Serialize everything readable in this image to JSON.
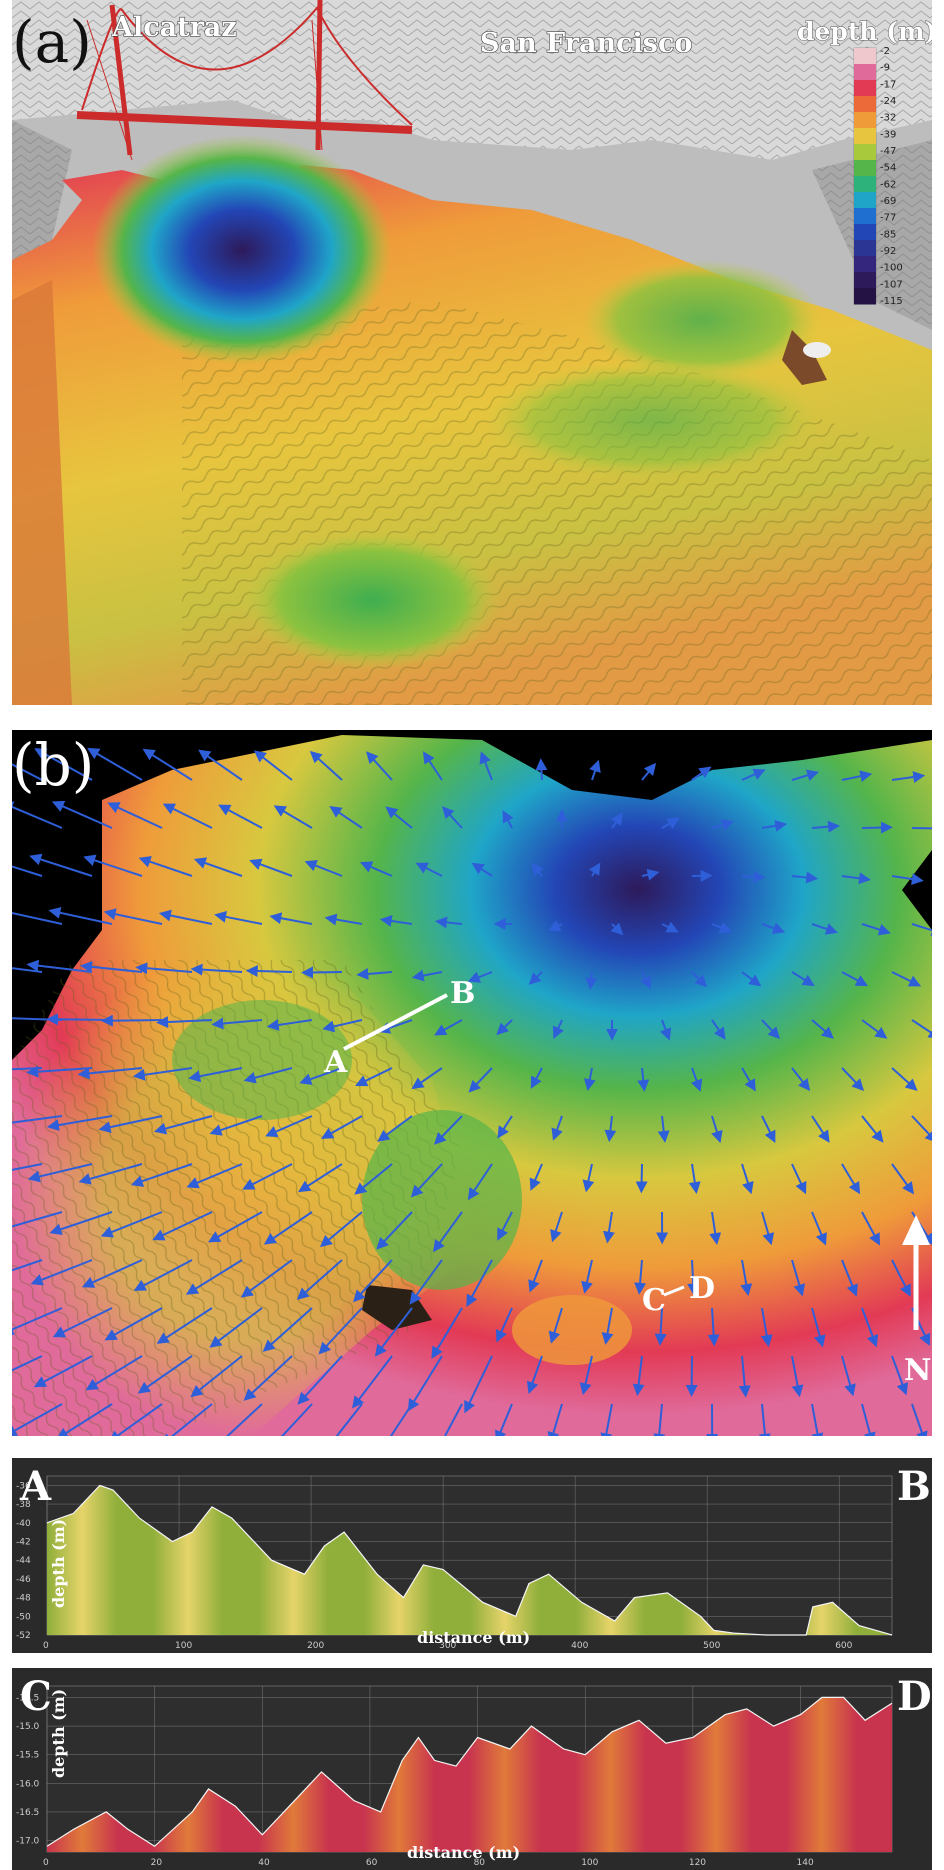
{
  "panel_a": {
    "letter": "(a)",
    "labels": {
      "alcatraz": "Alcatraz",
      "san_francisco": "San Francisco"
    },
    "legend": {
      "title": "depth (m)",
      "ticks": [
        "-2",
        "-9",
        "-17",
        "-24",
        "-32",
        "-39",
        "-47",
        "-54",
        "-62",
        "-69",
        "-77",
        "-85",
        "-92",
        "-100",
        "-107",
        "-115"
      ],
      "colors": [
        "#eec8cc",
        "#e06a9a",
        "#e23a55",
        "#ec6a3a",
        "#ef9b3a",
        "#e8c53e",
        "#a9c93c",
        "#55b54a",
        "#2cb27a",
        "#1fa5c8",
        "#1e6fd0",
        "#2346b6",
        "#2a3594",
        "#34267c",
        "#2d1a5a",
        "#241244"
      ]
    }
  },
  "panel_b": {
    "letter": "(b)",
    "points": {
      "a": "A",
      "b": "B",
      "c": "C",
      "d": "D"
    },
    "north": "N"
  },
  "profile_ab": {
    "start": "A",
    "end": "B",
    "ylabel": "depth (m)",
    "xlabel": "distance (m)",
    "y_ticks": [
      "-36",
      "-38",
      "-40",
      "-42",
      "-44",
      "-46",
      "-48",
      "-50",
      "-52"
    ],
    "x_ticks": [
      "0",
      "100",
      "200",
      "300",
      "400",
      "500",
      "600"
    ]
  },
  "profile_cd": {
    "start": "C",
    "end": "D",
    "ylabel": "depth (m)",
    "xlabel": "distance (m)",
    "y_ticks": [
      "-14.5",
      "-15.0",
      "-15.5",
      "-16.0",
      "-16.5",
      "-17.0"
    ],
    "x_ticks": [
      "0",
      "20",
      "40",
      "60",
      "80",
      "100",
      "120",
      "140"
    ]
  },
  "chart_data": [
    {
      "type": "area",
      "xlabel": "distance (m)",
      "ylabel": "depth (m)",
      "xlim": [
        0,
        640
      ],
      "ylim": [
        -52,
        -35
      ],
      "x": [
        0,
        20,
        40,
        50,
        70,
        95,
        110,
        125,
        140,
        170,
        195,
        210,
        225,
        250,
        270,
        285,
        300,
        330,
        355,
        365,
        380,
        405,
        430,
        445,
        470,
        495,
        505,
        520,
        545,
        575,
        580,
        595,
        615,
        640
      ],
      "y": [
        -40,
        -39,
        -36,
        -36.5,
        -39.5,
        -42,
        -41,
        -38.3,
        -39.5,
        -44,
        -45.5,
        -42.5,
        -41,
        -45.5,
        -48,
        -44.5,
        -45,
        -48.5,
        -50,
        -46.5,
        -45.5,
        -48.5,
        -50.5,
        -48,
        -47.5,
        -50,
        -51.5,
        -51.8,
        -52,
        -52.5,
        -49,
        -48.5,
        -51,
        -53
      ]
    },
    {
      "type": "area",
      "xlabel": "distance (m)",
      "ylabel": "depth (m)",
      "xlim": [
        0,
        157
      ],
      "ylim": [
        -17.2,
        -14.3
      ],
      "x": [
        0,
        5,
        11,
        15,
        20,
        27,
        30,
        35,
        40,
        47,
        51,
        57,
        62,
        66,
        69,
        72,
        76,
        80,
        86,
        90,
        96,
        100,
        105,
        110,
        115,
        120,
        126,
        130,
        135,
        140,
        144,
        148,
        152,
        157
      ],
      "y": [
        -17.1,
        -16.8,
        -16.5,
        -16.8,
        -17.1,
        -16.5,
        -16.1,
        -16.4,
        -16.9,
        -16.2,
        -15.8,
        -16.3,
        -16.5,
        -15.6,
        -15.2,
        -15.6,
        -15.7,
        -15.2,
        -15.4,
        -15.0,
        -15.4,
        -15.5,
        -15.1,
        -14.9,
        -15.3,
        -15.2,
        -14.8,
        -14.7,
        -15.0,
        -14.8,
        -14.5,
        -14.5,
        -14.9,
        -14.6
      ]
    }
  ]
}
